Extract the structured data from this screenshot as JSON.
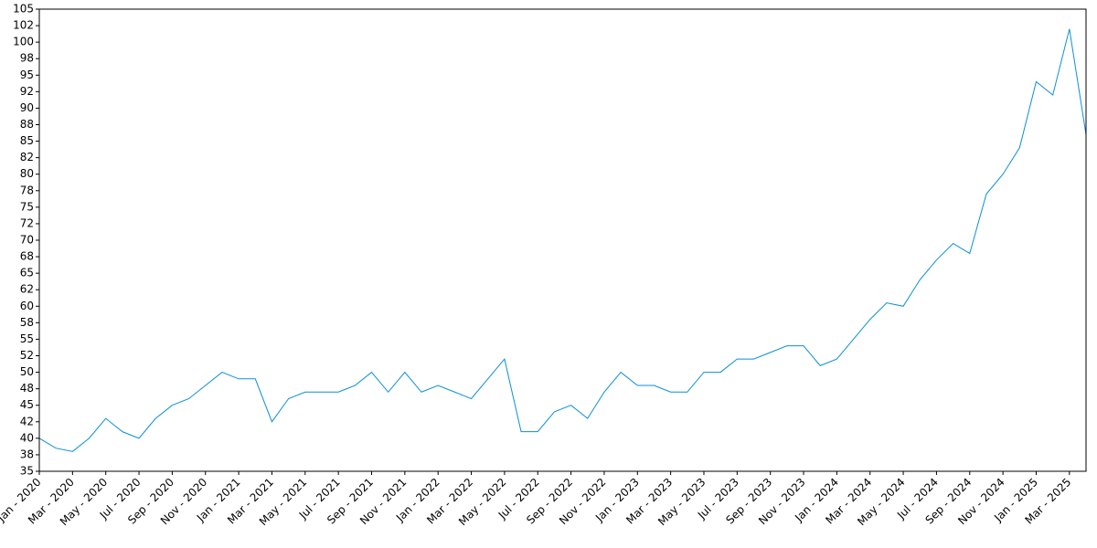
{
  "chart_data": {
    "type": "line",
    "x": [
      "2020-01",
      "2020-02",
      "2020-03",
      "2020-04",
      "2020-05",
      "2020-06",
      "2020-07",
      "2020-08",
      "2020-09",
      "2020-10",
      "2020-11",
      "2020-12",
      "2021-01",
      "2021-02",
      "2021-03",
      "2021-04",
      "2021-05",
      "2021-06",
      "2021-07",
      "2021-08",
      "2021-09",
      "2021-10",
      "2021-11",
      "2021-12",
      "2022-01",
      "2022-02",
      "2022-03",
      "2022-04",
      "2022-05",
      "2022-06",
      "2022-07",
      "2022-08",
      "2022-09",
      "2022-10",
      "2022-11",
      "2022-12",
      "2023-01",
      "2023-02",
      "2023-03",
      "2023-04",
      "2023-05",
      "2023-06",
      "2023-07",
      "2023-08",
      "2023-09",
      "2023-10",
      "2023-11",
      "2023-12",
      "2024-01",
      "2024-02",
      "2024-03",
      "2024-04",
      "2024-05",
      "2024-06",
      "2024-07",
      "2024-08",
      "2024-09",
      "2024-10",
      "2024-11",
      "2024-12",
      "2025-01",
      "2025-02",
      "2025-03",
      "2025-04"
    ],
    "series": [
      {
        "color": "#0a8fd8",
        "values": [
          40,
          38.5,
          38,
          40,
          43,
          41,
          40,
          43,
          45,
          46,
          48,
          50,
          49,
          49,
          42.5,
          46,
          47,
          47,
          47,
          48,
          50,
          47,
          50,
          47,
          48,
          47,
          46,
          49,
          52,
          41,
          41,
          44,
          45,
          43,
          47,
          50,
          48,
          48,
          47,
          47,
          50,
          50,
          52,
          52,
          53,
          54,
          54,
          51,
          52,
          55,
          58,
          60.5,
          60,
          64,
          67,
          69.5,
          68,
          77,
          80,
          84,
          94,
          92,
          102,
          86
        ]
      }
    ],
    "xlim": [
      "2020-01",
      "2025-04"
    ],
    "xticks": [
      {
        "value": "2020-01",
        "label": "Jan - 2020"
      },
      {
        "value": "2020-03",
        "label": "Mar - 2020"
      },
      {
        "value": "2020-05",
        "label": "May - 2020"
      },
      {
        "value": "2020-07",
        "label": "Jul - 2020"
      },
      {
        "value": "2020-09",
        "label": "Sep - 2020"
      },
      {
        "value": "2020-11",
        "label": "Nov - 2020"
      },
      {
        "value": "2021-01",
        "label": "Jan - 2021"
      },
      {
        "value": "2021-03",
        "label": "Mar - 2021"
      },
      {
        "value": "2021-05",
        "label": "May - 2021"
      },
      {
        "value": "2021-07",
        "label": "Jul - 2021"
      },
      {
        "value": "2021-09",
        "label": "Sep - 2021"
      },
      {
        "value": "2021-11",
        "label": "Nov - 2021"
      },
      {
        "value": "2022-01",
        "label": "Jan - 2022"
      },
      {
        "value": "2022-03",
        "label": "Mar - 2022"
      },
      {
        "value": "2022-05",
        "label": "May - 2022"
      },
      {
        "value": "2022-07",
        "label": "Jul - 2022"
      },
      {
        "value": "2022-09",
        "label": "Sep - 2022"
      },
      {
        "value": "2022-11",
        "label": "Nov - 2022"
      },
      {
        "value": "2023-01",
        "label": "Jan - 2023"
      },
      {
        "value": "2023-03",
        "label": "Mar - 2023"
      },
      {
        "value": "2023-05",
        "label": "May - 2023"
      },
      {
        "value": "2023-07",
        "label": "Jul - 2023"
      },
      {
        "value": "2023-09",
        "label": "Sep - 2023"
      },
      {
        "value": "2023-11",
        "label": "Nov - 2023"
      },
      {
        "value": "2024-01",
        "label": "Jan - 2024"
      },
      {
        "value": "2024-03",
        "label": "Mar - 2024"
      },
      {
        "value": "2024-05",
        "label": "May - 2024"
      },
      {
        "value": "2024-07",
        "label": "Jul - 2024"
      },
      {
        "value": "2024-09",
        "label": "Sep - 2024"
      },
      {
        "value": "2024-11",
        "label": "Nov - 2024"
      },
      {
        "value": "2025-01",
        "label": "Jan - 2025"
      },
      {
        "value": "2025-03",
        "label": "Mar - 2025"
      }
    ],
    "ylim": [
      35,
      105
    ],
    "yticks": [
      35,
      {
        "value": 37.5,
        "label": "38"
      },
      40,
      {
        "value": 42.5,
        "label": "42"
      },
      45,
      {
        "value": 47.5,
        "label": "48"
      },
      50,
      {
        "value": 52.5,
        "label": "52"
      },
      55,
      {
        "value": 57.5,
        "label": "58"
      },
      60,
      {
        "value": 62.5,
        "label": "62"
      },
      65,
      {
        "value": 67.5,
        "label": "68"
      },
      70,
      {
        "value": 72.5,
        "label": "72"
      },
      75,
      {
        "value": 77.5,
        "label": "78"
      },
      80,
      {
        "value": 82.5,
        "label": "82"
      },
      85,
      {
        "value": 87.5,
        "label": "88"
      },
      90,
      {
        "value": 92.5,
        "label": "92"
      },
      95,
      {
        "value": 97.5,
        "label": "98"
      },
      100,
      {
        "value": 102.5,
        "label": "102"
      },
      105
    ]
  }
}
